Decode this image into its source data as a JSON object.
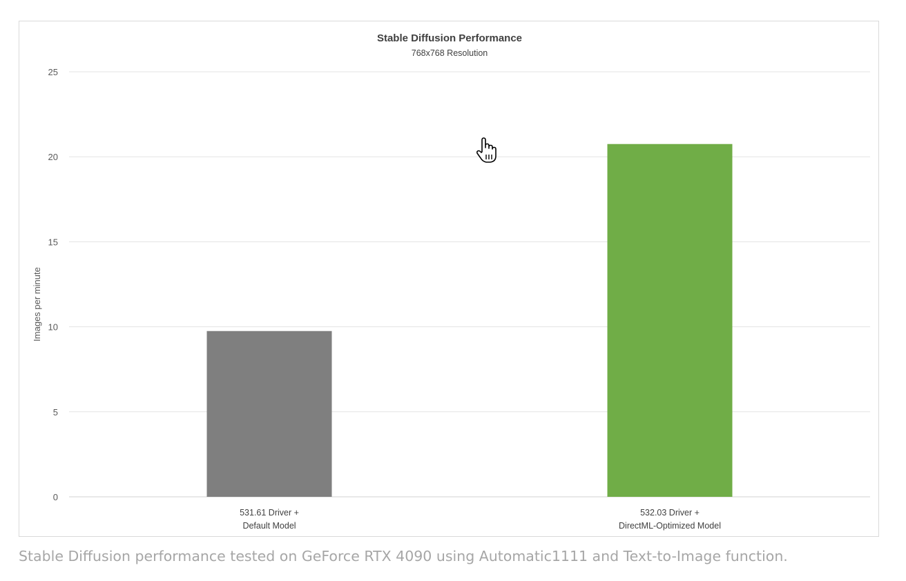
{
  "chart_data": {
    "type": "bar",
    "title": "Stable Diffusion Performance",
    "subtitle": "768x768 Resolution",
    "ylabel": "Images per minute",
    "xlabel": "",
    "ylim": [
      0,
      25
    ],
    "yticks": [
      0,
      5,
      10,
      15,
      20,
      25
    ],
    "grid": true,
    "categories": [
      [
        "531.61 Driver +",
        "Default Model"
      ],
      [
        "532.03 Driver +",
        "DirectML-Optimized Model"
      ]
    ],
    "values": [
      9.75,
      20.75
    ],
    "colors": [
      "#7f7f7f",
      "#70ad47"
    ]
  },
  "caption": "Stable Diffusion performance tested on GeForce RTX 4090 using Automatic1111 and Text-to-Image function."
}
